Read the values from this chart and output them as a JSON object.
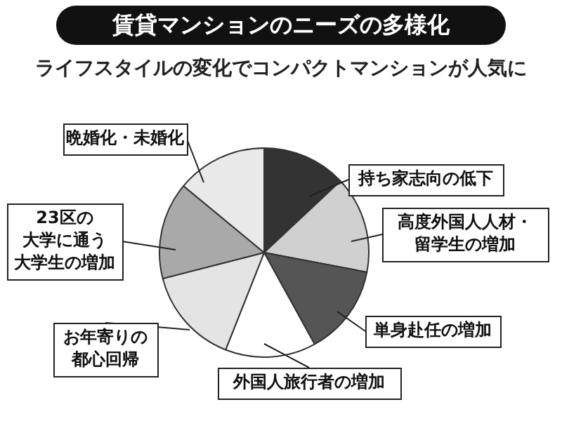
{
  "chart_data": {
    "type": "pie",
    "title": "賃貸マンションのニーズの多様化",
    "subtitle": "ライフスタイルの変化でコンパクトマンションが人気に",
    "categories": [
      "持ち家志向の低下",
      "高度外国人人材・留学生の増加",
      "単身赴任の増加",
      "外国人旅行者の増加",
      "お年寄りの都心回帰",
      "23区の大学に通う大学生の増加",
      "晩婚化・未婚化"
    ],
    "values": [
      13,
      15,
      14,
      14,
      15,
      15,
      14
    ],
    "colors": [
      "#333333",
      "#d0d0d0",
      "#555555",
      "#ffffff",
      "#e4e4e4",
      "#a9a9a9",
      "#e9e9e9"
    ],
    "legend": false
  }
}
